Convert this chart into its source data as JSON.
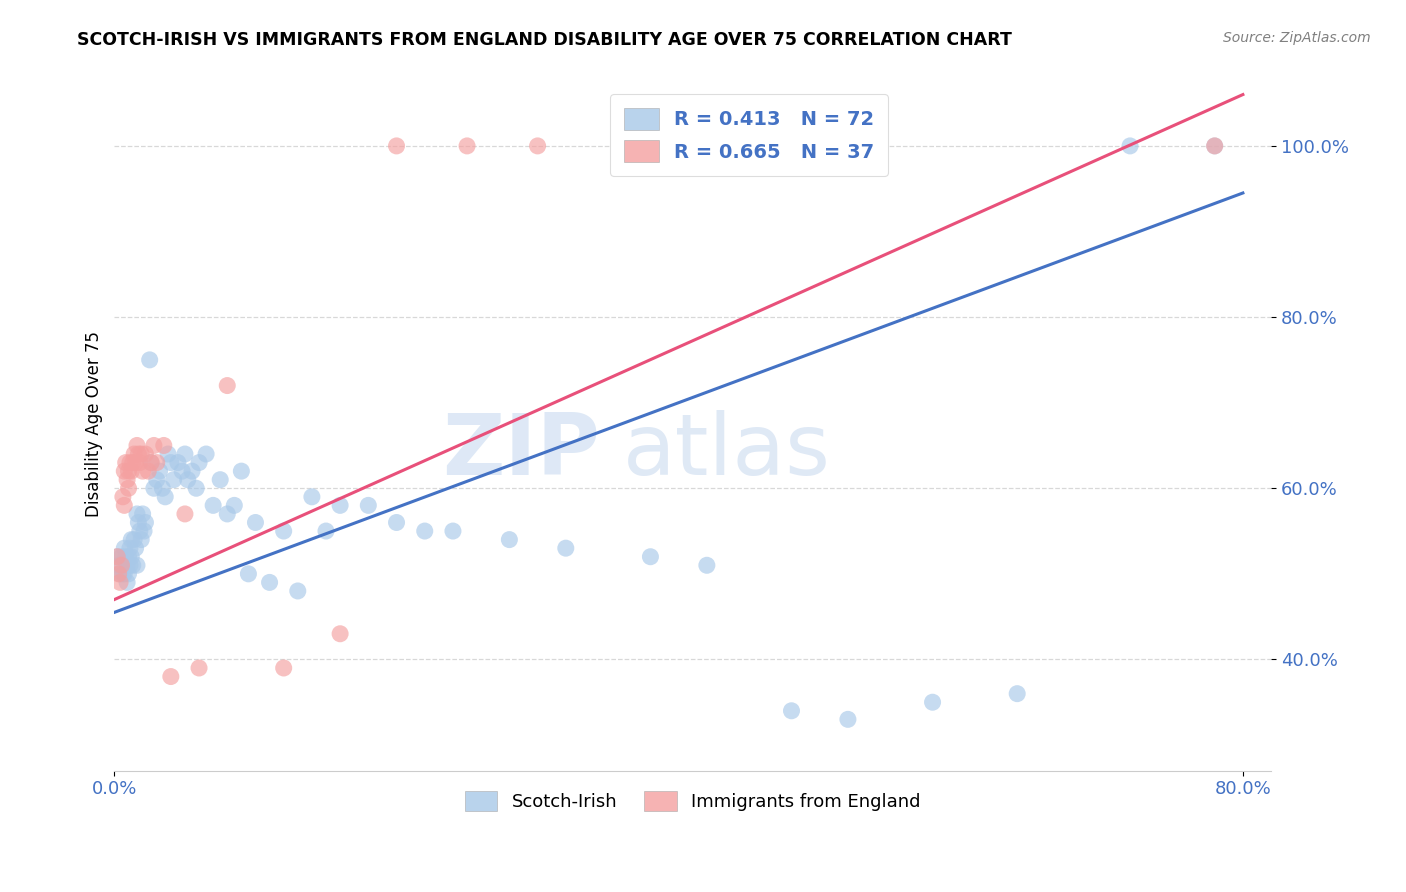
{
  "title": "SCOTCH-IRISH VS IMMIGRANTS FROM ENGLAND DISABILITY AGE OVER 75 CORRELATION CHART",
  "source": "Source: ZipAtlas.com",
  "ylabel": "Disability Age Over 75",
  "watermark_zip": "ZIP",
  "watermark_atlas": "atlas",
  "legend_blue_label": "R = 0.413   N = 72",
  "legend_pink_label": "R = 0.665   N = 37",
  "legend_blue_sublabel": "Scotch-Irish",
  "legend_pink_sublabel": "Immigrants from England",
  "blue_color": "#a8c8e8",
  "pink_color": "#f4a0a0",
  "blue_line_color": "#4472c4",
  "pink_line_color": "#e8507a",
  "xlim": [
    0.0,
    0.82
  ],
  "ylim": [
    0.27,
    1.08
  ],
  "blue_scatter_x": [
    0.002,
    0.003,
    0.004,
    0.005,
    0.006,
    0.007,
    0.007,
    0.008,
    0.009,
    0.009,
    0.01,
    0.01,
    0.011,
    0.011,
    0.012,
    0.012,
    0.013,
    0.014,
    0.015,
    0.016,
    0.016,
    0.017,
    0.018,
    0.019,
    0.02,
    0.021,
    0.022,
    0.025,
    0.026,
    0.028,
    0.03,
    0.032,
    0.034,
    0.036,
    0.038,
    0.04,
    0.042,
    0.045,
    0.048,
    0.05,
    0.052,
    0.055,
    0.058,
    0.06,
    0.065,
    0.07,
    0.075,
    0.08,
    0.085,
    0.09,
    0.095,
    0.1,
    0.11,
    0.12,
    0.13,
    0.14,
    0.15,
    0.16,
    0.18,
    0.2,
    0.22,
    0.24,
    0.28,
    0.32,
    0.38,
    0.42,
    0.48,
    0.52,
    0.58,
    0.64,
    0.72,
    0.78
  ],
  "blue_scatter_y": [
    0.52,
    0.51,
    0.5,
    0.52,
    0.5,
    0.53,
    0.5,
    0.52,
    0.51,
    0.49,
    0.52,
    0.5,
    0.53,
    0.51,
    0.54,
    0.52,
    0.51,
    0.54,
    0.53,
    0.51,
    0.57,
    0.56,
    0.55,
    0.54,
    0.57,
    0.55,
    0.56,
    0.75,
    0.63,
    0.6,
    0.61,
    0.62,
    0.6,
    0.59,
    0.64,
    0.63,
    0.61,
    0.63,
    0.62,
    0.64,
    0.61,
    0.62,
    0.6,
    0.63,
    0.64,
    0.58,
    0.61,
    0.57,
    0.58,
    0.62,
    0.5,
    0.56,
    0.49,
    0.55,
    0.48,
    0.59,
    0.55,
    0.58,
    0.58,
    0.56,
    0.55,
    0.55,
    0.54,
    0.53,
    0.52,
    0.51,
    0.34,
    0.33,
    0.35,
    0.36,
    1.0,
    1.0
  ],
  "pink_scatter_x": [
    0.002,
    0.003,
    0.004,
    0.005,
    0.006,
    0.007,
    0.007,
    0.008,
    0.009,
    0.01,
    0.01,
    0.011,
    0.012,
    0.013,
    0.014,
    0.015,
    0.016,
    0.017,
    0.018,
    0.019,
    0.02,
    0.022,
    0.024,
    0.026,
    0.028,
    0.03,
    0.035,
    0.04,
    0.05,
    0.06,
    0.08,
    0.12,
    0.16,
    0.2,
    0.25,
    0.3,
    0.78
  ],
  "pink_scatter_y": [
    0.52,
    0.5,
    0.49,
    0.51,
    0.59,
    0.58,
    0.62,
    0.63,
    0.61,
    0.6,
    0.62,
    0.63,
    0.62,
    0.63,
    0.64,
    0.63,
    0.65,
    0.64,
    0.63,
    0.64,
    0.62,
    0.64,
    0.62,
    0.63,
    0.65,
    0.63,
    0.65,
    0.38,
    0.57,
    0.39,
    0.72,
    0.39,
    0.43,
    1.0,
    1.0,
    1.0,
    1.0
  ],
  "blue_line_x": [
    0.0,
    0.8
  ],
  "blue_line_y": [
    0.455,
    0.945
  ],
  "pink_line_x": [
    0.0,
    0.8
  ],
  "pink_line_y": [
    0.47,
    1.06
  ],
  "yticks": [
    0.4,
    0.6,
    0.8,
    1.0
  ],
  "ytick_labels": [
    "40.0%",
    "60.0%",
    "80.0%",
    "100.0%"
  ],
  "xtick_positions": [
    0.0,
    0.8
  ],
  "xtick_labels": [
    "0.0%",
    "80.0%"
  ],
  "background_color": "#ffffff",
  "grid_color": "#d8d8d8"
}
